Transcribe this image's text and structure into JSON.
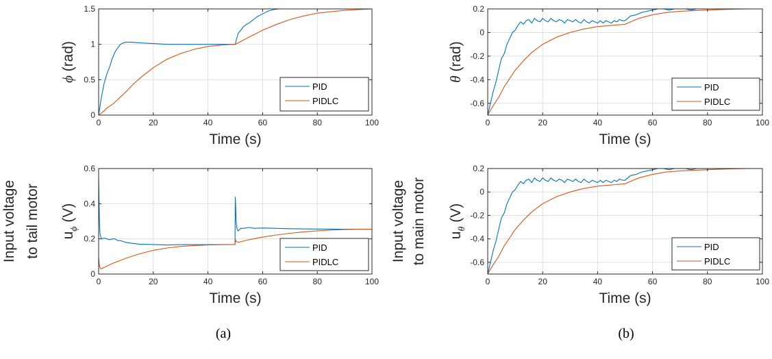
{
  "captions": [
    "(a)",
    "(b)"
  ],
  "chart_data": [
    {
      "type": "line",
      "xlabel": "Time (s)",
      "ylabel_symbol": "ϕ",
      "ylabel_unit": " (rad)",
      "ylabel_extra": [],
      "xlim": [
        0,
        100
      ],
      "ylim": [
        0,
        1.5
      ],
      "xticks": [
        0,
        20,
        40,
        60,
        80,
        100
      ],
      "yticks": [
        0,
        0.5,
        1,
        1.5
      ],
      "xtick_labels": [
        "0",
        "20",
        "40",
        "60",
        "80",
        "100"
      ],
      "ytick_labels": [
        "0",
        "0.5",
        "1",
        "1.5"
      ],
      "grid": true,
      "legend_position": "bottom-right",
      "series": [
        {
          "name": "PID",
          "color": "#0072BD",
          "x": [
            0,
            1,
            2,
            3,
            4,
            5,
            6,
            7,
            8,
            9,
            10,
            12,
            15,
            20,
            25,
            30,
            35,
            40,
            45,
            49,
            50,
            50.5,
            51,
            52,
            53,
            54,
            55,
            56,
            57,
            58,
            60,
            62,
            64,
            66,
            70,
            75,
            80,
            90,
            100
          ],
          "y": [
            0,
            0.25,
            0.45,
            0.58,
            0.68,
            0.8,
            0.89,
            0.95,
            1.0,
            1.02,
            1.03,
            1.03,
            1.02,
            1.01,
            1.0,
            1.0,
            1.0,
            1.0,
            1.0,
            1.0,
            1.0,
            1.08,
            1.15,
            1.2,
            1.25,
            1.28,
            1.3,
            1.33,
            1.36,
            1.39,
            1.43,
            1.47,
            1.49,
            1.5,
            1.51,
            1.51,
            1.5,
            1.5,
            1.5
          ]
        },
        {
          "name": "PIDLC",
          "color": "#D95319",
          "x": [
            0,
            1,
            2,
            3,
            5,
            7,
            10,
            13,
            16,
            20,
            25,
            30,
            35,
            40,
            45,
            50,
            52,
            55,
            60,
            65,
            70,
            75,
            80,
            85,
            90,
            95,
            100
          ],
          "y": [
            0,
            0.03,
            0.06,
            0.1,
            0.15,
            0.22,
            0.33,
            0.45,
            0.55,
            0.67,
            0.79,
            0.87,
            0.93,
            0.97,
            0.99,
            1.0,
            1.04,
            1.1,
            1.2,
            1.28,
            1.35,
            1.4,
            1.44,
            1.46,
            1.48,
            1.49,
            1.5
          ]
        }
      ]
    },
    {
      "type": "line",
      "xlabel": "Time (s)",
      "ylabel_symbol": "θ",
      "ylabel_unit": " (rad)",
      "ylabel_extra": [],
      "xlim": [
        0,
        100
      ],
      "ylim": [
        -0.7,
        0.2
      ],
      "xticks": [
        0,
        20,
        40,
        60,
        80,
        100
      ],
      "yticks": [
        -0.6,
        -0.4,
        -0.2,
        0,
        0.2
      ],
      "xtick_labels": [
        "0",
        "20",
        "40",
        "60",
        "80",
        "100"
      ],
      "ytick_labels": [
        "-0.6",
        "-0.4",
        "-0.2",
        "0",
        "0.2"
      ],
      "grid": true,
      "legend_position": "bottom-right",
      "series": [
        {
          "name": "PID",
          "color": "#0072BD",
          "x": [
            0,
            1,
            2,
            3,
            4,
            5,
            6,
            7,
            8,
            9,
            10,
            11,
            12,
            13,
            14,
            15,
            16,
            17,
            18,
            19,
            20,
            21,
            22,
            23,
            24,
            25,
            26,
            27,
            28,
            29,
            30,
            31,
            32,
            33,
            34,
            35,
            36,
            37,
            38,
            39,
            40,
            41,
            42,
            43,
            44,
            45,
            46,
            47,
            48,
            49,
            50,
            52,
            54,
            56,
            58,
            60,
            62,
            64,
            66,
            68,
            70,
            72,
            74,
            76,
            78,
            80,
            82,
            84,
            86,
            88,
            90,
            92,
            94,
            96,
            98,
            100
          ],
          "y": [
            -0.7,
            -0.6,
            -0.5,
            -0.42,
            -0.32,
            -0.22,
            -0.18,
            -0.1,
            -0.05,
            0.0,
            0.02,
            0.06,
            0.09,
            0.07,
            0.1,
            0.11,
            0.08,
            0.12,
            0.1,
            0.09,
            0.12,
            0.1,
            0.09,
            0.12,
            0.1,
            0.09,
            0.11,
            0.1,
            0.08,
            0.11,
            0.1,
            0.09,
            0.11,
            0.09,
            0.08,
            0.11,
            0.09,
            0.08,
            0.1,
            0.09,
            0.08,
            0.1,
            0.08,
            0.1,
            0.09,
            0.08,
            0.1,
            0.09,
            0.11,
            0.1,
            0.1,
            0.14,
            0.15,
            0.17,
            0.18,
            0.19,
            0.2,
            0.21,
            0.19,
            0.21,
            0.2,
            0.21,
            0.19,
            0.21,
            0.2,
            0.21,
            0.2,
            0.21,
            0.2,
            0.21,
            0.2,
            0.21,
            0.2,
            0.21,
            0.2,
            0.21
          ]
        },
        {
          "name": "PIDLC",
          "color": "#D95319",
          "x": [
            0,
            2,
            4,
            6,
            8,
            10,
            13,
            16,
            20,
            25,
            30,
            35,
            40,
            45,
            50,
            52,
            55,
            60,
            65,
            70,
            75,
            80,
            85,
            90,
            95,
            100
          ],
          "y": [
            -0.7,
            -0.62,
            -0.55,
            -0.46,
            -0.39,
            -0.32,
            -0.24,
            -0.17,
            -0.1,
            -0.04,
            0.0,
            0.03,
            0.05,
            0.06,
            0.07,
            0.09,
            0.12,
            0.15,
            0.17,
            0.18,
            0.185,
            0.19,
            0.195,
            0.198,
            0.2,
            0.2
          ]
        }
      ]
    },
    {
      "type": "line",
      "xlabel": "Time (s)",
      "ylabel_symbol": "u",
      "ylabel_sub": "ϕ",
      "ylabel_unit": " (V)",
      "ylabel_extra": [
        "Input voltage",
        "to tail motor"
      ],
      "xlim": [
        0,
        100
      ],
      "ylim": [
        0,
        0.6
      ],
      "xticks": [
        0,
        20,
        40,
        60,
        80,
        100
      ],
      "yticks": [
        0,
        0.2,
        0.4,
        0.6
      ],
      "xtick_labels": [
        "0",
        "20",
        "40",
        "60",
        "80",
        "100"
      ],
      "ytick_labels": [
        "0",
        "0.2",
        "0.4",
        "0.6"
      ],
      "grid": true,
      "legend_position": "bottom-right",
      "series": [
        {
          "name": "PID",
          "color": "#0072BD",
          "x": [
            0,
            0.15,
            0.3,
            0.5,
            0.8,
            1.2,
            2,
            3,
            4,
            5,
            6,
            7,
            8,
            9,
            10,
            12,
            15,
            20,
            25,
            30,
            35,
            40,
            45,
            49.9,
            50,
            50.15,
            50.3,
            50.6,
            51,
            52,
            53,
            55,
            57,
            60,
            65,
            70,
            80,
            90,
            100
          ],
          "y": [
            0.55,
            0.42,
            0.3,
            0.23,
            0.21,
            0.2,
            0.205,
            0.2,
            0.195,
            0.2,
            0.2,
            0.19,
            0.19,
            0.185,
            0.18,
            0.175,
            0.17,
            0.168,
            0.165,
            0.167,
            0.167,
            0.167,
            0.168,
            0.168,
            0.44,
            0.38,
            0.3,
            0.26,
            0.245,
            0.26,
            0.26,
            0.265,
            0.26,
            0.262,
            0.26,
            0.258,
            0.256,
            0.255,
            0.255
          ]
        },
        {
          "name": "PIDLC",
          "color": "#D95319",
          "x": [
            0,
            0.2,
            0.4,
            0.8,
            1,
            3,
            5,
            10,
            15,
            20,
            25,
            30,
            35,
            40,
            45,
            49.9,
            50,
            50.3,
            51,
            55,
            60,
            65,
            70,
            75,
            80,
            85,
            90,
            95,
            100
          ],
          "y": [
            0.1,
            0.06,
            0.04,
            0.03,
            0.03,
            0.045,
            0.06,
            0.09,
            0.115,
            0.135,
            0.148,
            0.157,
            0.162,
            0.165,
            0.167,
            0.168,
            0.2,
            0.185,
            0.18,
            0.195,
            0.21,
            0.222,
            0.232,
            0.24,
            0.246,
            0.25,
            0.253,
            0.255,
            0.255
          ]
        }
      ]
    },
    {
      "type": "line",
      "xlabel": "Time (s)",
      "ylabel_symbol": "u",
      "ylabel_sub": "θ",
      "ylabel_unit": " (V)",
      "ylabel_extra": [
        "Input voltage",
        "to main motor"
      ],
      "xlim": [
        0,
        100
      ],
      "ylim": [
        -0.7,
        0.2
      ],
      "xticks": [
        0,
        20,
        40,
        60,
        80,
        100
      ],
      "yticks": [
        -0.6,
        -0.4,
        -0.2,
        0,
        0.2
      ],
      "xtick_labels": [
        "0",
        "20",
        "40",
        "60",
        "80",
        "100"
      ],
      "ytick_labels": [
        "-0.6",
        "-0.4",
        "-0.2",
        "0",
        "0.2"
      ],
      "grid": true,
      "legend_position": "bottom-right",
      "series": [
        {
          "name": "PID",
          "color": "#0072BD",
          "x": [
            0,
            1,
            2,
            3,
            4,
            5,
            6,
            7,
            8,
            9,
            10,
            11,
            12,
            13,
            14,
            15,
            16,
            17,
            18,
            19,
            20,
            21,
            22,
            23,
            24,
            25,
            26,
            27,
            28,
            29,
            30,
            31,
            32,
            33,
            34,
            35,
            36,
            37,
            38,
            39,
            40,
            41,
            42,
            43,
            44,
            45,
            46,
            47,
            48,
            49,
            50,
            52,
            54,
            56,
            58,
            60,
            62,
            64,
            66,
            68,
            70,
            72,
            74,
            76,
            78,
            80,
            82,
            84,
            86,
            88,
            90,
            92,
            94,
            96,
            98,
            100
          ],
          "y": [
            -0.7,
            -0.6,
            -0.5,
            -0.42,
            -0.32,
            -0.22,
            -0.18,
            -0.1,
            -0.05,
            0.0,
            0.02,
            0.06,
            0.09,
            0.07,
            0.1,
            0.11,
            0.08,
            0.12,
            0.1,
            0.09,
            0.12,
            0.1,
            0.09,
            0.12,
            0.1,
            0.09,
            0.11,
            0.1,
            0.08,
            0.11,
            0.1,
            0.09,
            0.11,
            0.09,
            0.08,
            0.11,
            0.09,
            0.08,
            0.1,
            0.09,
            0.08,
            0.1,
            0.08,
            0.1,
            0.09,
            0.08,
            0.1,
            0.09,
            0.11,
            0.1,
            0.1,
            0.14,
            0.15,
            0.17,
            0.18,
            0.19,
            0.2,
            0.21,
            0.19,
            0.21,
            0.2,
            0.21,
            0.19,
            0.21,
            0.2,
            0.21,
            0.2,
            0.21,
            0.2,
            0.21,
            0.2,
            0.21,
            0.2,
            0.21,
            0.2,
            0.21
          ]
        },
        {
          "name": "PIDLC",
          "color": "#D95319",
          "x": [
            0,
            2,
            4,
            6,
            8,
            10,
            13,
            16,
            20,
            25,
            30,
            35,
            40,
            45,
            50,
            52,
            55,
            60,
            65,
            70,
            75,
            80,
            85,
            90,
            95,
            100
          ],
          "y": [
            -0.7,
            -0.62,
            -0.55,
            -0.46,
            -0.39,
            -0.32,
            -0.24,
            -0.17,
            -0.1,
            -0.04,
            0.0,
            0.03,
            0.05,
            0.06,
            0.07,
            0.09,
            0.12,
            0.15,
            0.17,
            0.18,
            0.185,
            0.19,
            0.195,
            0.198,
            0.2,
            0.2
          ]
        }
      ]
    }
  ]
}
